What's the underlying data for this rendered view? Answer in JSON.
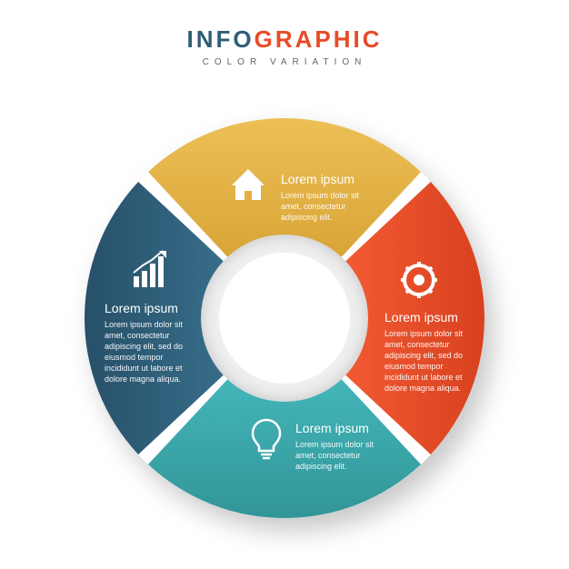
{
  "header": {
    "title_part1": "INFO",
    "title_part2": "GRAPHIC",
    "subtitle": "COLOR VARIATION",
    "title_color_1": "#2f5e78",
    "title_color_2": "#e84b27",
    "subtitle_color": "#666666",
    "title_fontsize": 26,
    "subtitle_fontsize": 10
  },
  "chart": {
    "type": "donut-infographic",
    "background_color": "#ffffff",
    "outer_radius": 220,
    "inner_radius": 72,
    "center_hole_color": "#ffffff",
    "gap_deg": 4,
    "shadow_color": "rgba(0,0,0,0.25)",
    "segments": [
      {
        "id": "top",
        "color": "#e7b642",
        "color_dark": "#c99a2e",
        "icon": "home-icon",
        "title": "Lorem ipsum",
        "body_lines": [
          "Lorem ipsum dolor sit",
          "amet, consectetur",
          "adipiscing elit."
        ],
        "angle_start": -135,
        "angle_end": -45
      },
      {
        "id": "right",
        "color": "#e84b27",
        "color_dark": "#c63a1a",
        "icon": "gear-icon",
        "title": "Lorem ipsum",
        "body_lines": [
          "Lorem ipsum dolor sit",
          "amet, consectetur",
          "adipiscing elit, sed do",
          "eiusmod tempor",
          "incididunt ut labore et",
          "dolore magna aliqua."
        ],
        "angle_start": -45,
        "angle_end": 45
      },
      {
        "id": "bottom",
        "color": "#3aa9ad",
        "color_dark": "#2e8a8d",
        "icon": "bulb-icon",
        "title": "Lorem ipsum",
        "body_lines": [
          "Lorem ipsum dolor sit",
          "amet, consectetur",
          "adipiscing elit."
        ],
        "angle_start": 45,
        "angle_end": 135
      },
      {
        "id": "left",
        "color": "#2f5e78",
        "color_dark": "#234a5f",
        "icon": "chart-icon",
        "title": "Lorem ipsum",
        "body_lines": [
          "Lorem ipsum dolor sit",
          "amet, consectetur",
          "adipiscing elit, sed do",
          "eiusmod tempor",
          "incididunt ut labore et",
          "dolore magna aliqua."
        ],
        "angle_start": 135,
        "angle_end": 225
      }
    ]
  }
}
